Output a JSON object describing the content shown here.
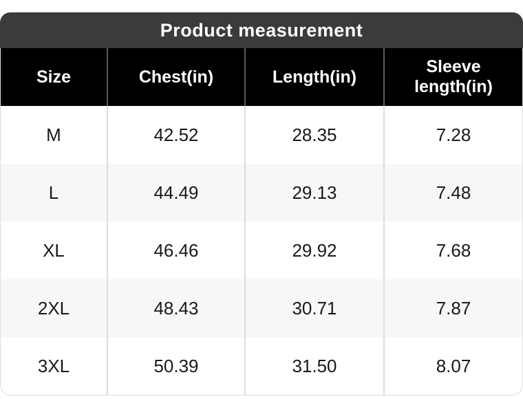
{
  "title_bar": {
    "title": "Product measurement"
  },
  "table": {
    "columns": [
      "Size",
      "Chest(in)",
      "Length(in)",
      "Sleeve length(in)"
    ],
    "rows": [
      [
        "M",
        "42.52",
        "28.35",
        "7.28"
      ],
      [
        "L",
        "44.49",
        "29.13",
        "7.48"
      ],
      [
        "XL",
        "46.46",
        "29.92",
        "7.68"
      ],
      [
        "2XL",
        "48.43",
        "30.71",
        "7.87"
      ],
      [
        "3XL",
        "50.39",
        "31.50",
        "8.07"
      ]
    ]
  },
  "chart_data": {
    "type": "table",
    "title": "Product measurement",
    "columns": [
      "Size",
      "Chest(in)",
      "Length(in)",
      "Sleeve length(in)"
    ],
    "rows": [
      {
        "size": "M",
        "chest_in": 42.52,
        "length_in": 28.35,
        "sleeve_length_in": 7.28
      },
      {
        "size": "L",
        "chest_in": 44.49,
        "length_in": 29.13,
        "sleeve_length_in": 7.48
      },
      {
        "size": "XL",
        "chest_in": 46.46,
        "length_in": 29.92,
        "sleeve_length_in": 7.68
      },
      {
        "size": "2XL",
        "chest_in": 48.43,
        "length_in": 30.71,
        "sleeve_length_in": 7.87
      },
      {
        "size": "3XL",
        "chest_in": 50.39,
        "length_in": 31.5,
        "sleeve_length_in": 8.07
      }
    ]
  },
  "colors": {
    "title_bar_bg": "#3b3b3b",
    "header_bg": "#000000",
    "header_text": "#ffffff",
    "row_alt_bg": "#f7f7f8",
    "body_text": "#191919",
    "body_divider": "#dcdcdc",
    "header_divider": "#5a5a5a",
    "card_border": "#dedede"
  }
}
